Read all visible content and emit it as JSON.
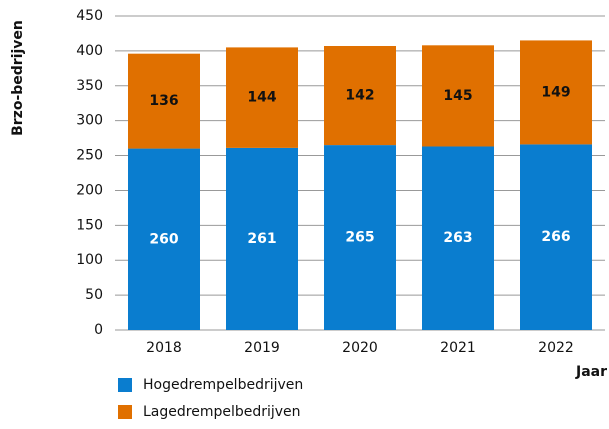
{
  "chart_data": {
    "type": "stacked_bar",
    "y_label": "Brzo-bedrijven",
    "x_label": "Jaar",
    "categories": [
      "2018",
      "2019",
      "2020",
      "2021",
      "2022"
    ],
    "series": [
      {
        "name": "Hogedrempelbedrijven",
        "color": "#0a7dcf",
        "label_color": "#ffffff",
        "values": [
          260,
          261,
          265,
          263,
          266
        ]
      },
      {
        "name": "Lagedrempelbedrijven",
        "color": "#e07000",
        "label_color": "#111111",
        "values": [
          136,
          144,
          142,
          145,
          149
        ]
      }
    ],
    "ylim": [
      0,
      450
    ],
    "yticks": [
      0,
      50,
      100,
      150,
      200,
      250,
      300,
      350,
      400,
      450
    ],
    "grid": true
  }
}
